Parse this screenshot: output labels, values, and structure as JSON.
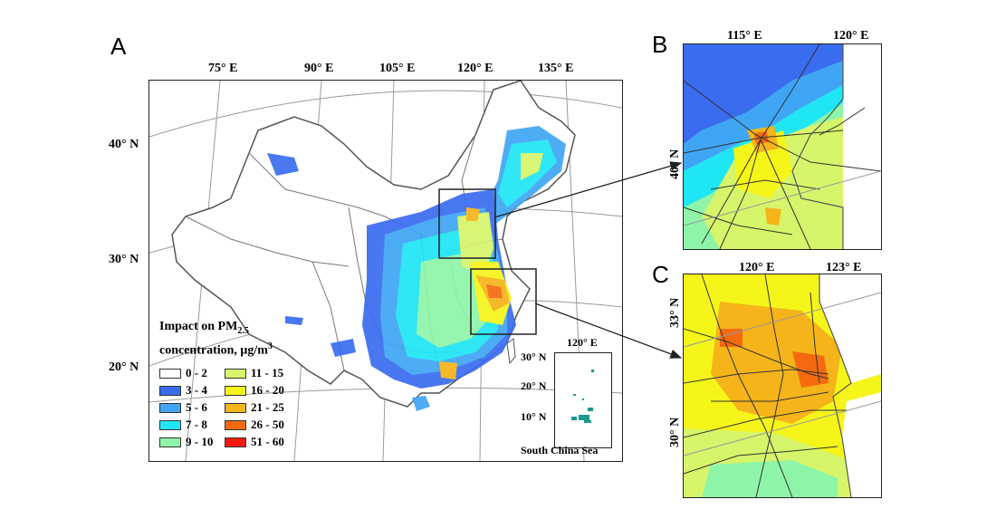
{
  "panels": {
    "a": "A",
    "b": "B",
    "c": "C"
  },
  "panel_a": {
    "lon_labels": [
      "75° E",
      "90° E",
      "105° E",
      "120° E",
      "135° E"
    ],
    "lat_labels": [
      "40° N",
      "30° N",
      "20° N"
    ],
    "inset": {
      "lon_label": "120° E",
      "lat_labels": [
        "30° N",
        "20° N",
        "10° N"
      ],
      "caption": "South China Sea"
    }
  },
  "panel_b": {
    "lon_labels": [
      "115° E",
      "120° E"
    ],
    "lat_labels": [
      "40° N"
    ]
  },
  "panel_c": {
    "lon_labels": [
      "120° E",
      "123° E"
    ],
    "lat_labels": [
      "33° N",
      "30° N"
    ]
  },
  "legend": {
    "title_line1": "Impact on PM",
    "title_sub": "2.5",
    "title_line2": "concentration, μg/m",
    "title_sup": "3",
    "items": [
      {
        "label": "0 - 2",
        "color": "#ffffff"
      },
      {
        "label": "3 - 4",
        "color": "#3a6cf0"
      },
      {
        "label": "5 - 6",
        "color": "#3fa6f5"
      },
      {
        "label": "7 - 8",
        "color": "#1fe6f5"
      },
      {
        "label": "9 - 10",
        "color": "#8ef5a8"
      },
      {
        "label": "11 - 15",
        "color": "#d6f56a"
      },
      {
        "label": "16 - 20",
        "color": "#f5f51a"
      },
      {
        "label": "21 - 25",
        "color": "#f5b41a"
      },
      {
        "label": "26 - 50",
        "color": "#f56a0f"
      },
      {
        "label": "51 - 60",
        "color": "#f51a0f"
      }
    ]
  }
}
